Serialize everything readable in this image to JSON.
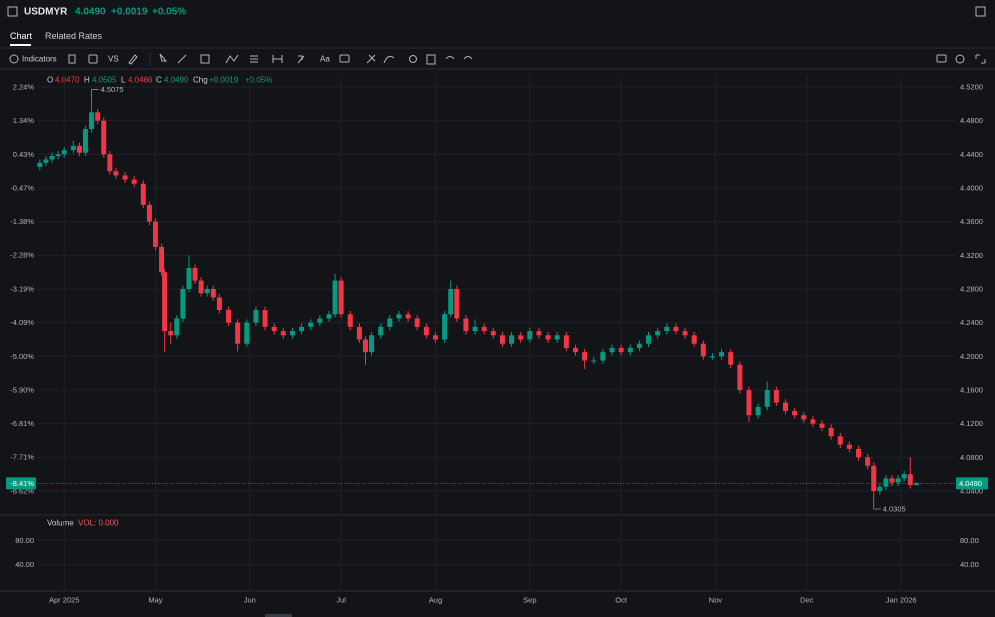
{
  "header": {
    "symbol": "USDMYR",
    "price": "4.0490",
    "change": "+0.0019",
    "change_pct": "+0.05%"
  },
  "tabs": [
    "Chart",
    "Related Rates"
  ],
  "toolbar": {
    "indicators": "Indicators",
    "compare": "VS",
    "text": "Aa"
  },
  "legend": {
    "o": "O",
    "o_value": "4.0470",
    "h": "H",
    "h_value": "4.0505",
    "l": "L",
    "l_value": "4.0466",
    "c": "C",
    "c_value": "4.0490",
    "chg": "Chg",
    "chg_value": "+0.0019",
    "chg_pct": "+0.05%"
  },
  "volume": {
    "title": "Volume",
    "label": "VOL: 0.000",
    "ylim": [
      -1.6,
      116.8
    ],
    "yticks": [
      {
        "value": 80,
        "label": "80.00"
      },
      {
        "value": 40,
        "label": "40.00"
      }
    ]
  },
  "chart_data": {
    "type": "candlestick",
    "up_color": "#089981",
    "down_color": "#f23645",
    "grid": true,
    "xlim": [
      22.4,
      323.7
    ],
    "xticks": [
      {
        "value": 31,
        "label": "Apr 2025"
      },
      {
        "value": 61,
        "label": "May"
      },
      {
        "value": 92,
        "label": "Jun"
      },
      {
        "value": 122,
        "label": "Jul"
      },
      {
        "value": 153,
        "label": "Aug"
      },
      {
        "value": 184,
        "label": "Sep"
      },
      {
        "value": 214,
        "label": "Oct"
      },
      {
        "value": 245,
        "label": "Nov"
      },
      {
        "value": 275,
        "label": "Dec"
      },
      {
        "value": 306,
        "label": "Jan 2026"
      }
    ],
    "ylim": [
      4.0174,
      4.5343
    ],
    "yticks": [
      {
        "value": 4.52,
        "label": "4.5200"
      },
      {
        "value": 4.48,
        "label": "4.4800"
      },
      {
        "value": 4.44,
        "label": "4.4400"
      },
      {
        "value": 4.4,
        "label": "4.4000"
      },
      {
        "value": 4.36,
        "label": "4.3600"
      },
      {
        "value": 4.32,
        "label": "4.3200"
      },
      {
        "value": 4.28,
        "label": "4.2800"
      },
      {
        "value": 4.24,
        "label": "4.2400"
      },
      {
        "value": 4.2,
        "label": "4.2000"
      },
      {
        "value": 4.16,
        "label": "4.1600"
      },
      {
        "value": 4.12,
        "label": "4.1200"
      },
      {
        "value": 4.08,
        "label": "4.0800"
      },
      {
        "value": 4.04,
        "label": "4.0400"
      }
    ],
    "y2lim": [
      -9.131,
      2.563
    ],
    "y2ticks": [
      {
        "value": 2.24,
        "label": "2.24%"
      },
      {
        "value": 1.34,
        "label": "1.34%"
      },
      {
        "value": 0.43,
        "label": "0.43%"
      },
      {
        "value": -0.47,
        "label": "-0.47%"
      },
      {
        "value": -1.38,
        "label": "-1.38%"
      },
      {
        "value": -2.28,
        "label": "-2.28%"
      },
      {
        "value": -3.19,
        "label": "-3.19%"
      },
      {
        "value": -4.09,
        "label": "-4.09%"
      },
      {
        "value": -5.0,
        "label": "-5.00%"
      },
      {
        "value": -5.9,
        "label": "-5.90%"
      },
      {
        "value": -6.81,
        "label": "-6.81%"
      },
      {
        "value": -7.71,
        "label": "-7.71%"
      },
      {
        "value": -8.62,
        "label": "-8.62%"
      }
    ],
    "last_price": {
      "value": 4.049,
      "label": "4.0490",
      "change_label": "-8.41%"
    },
    "annotations": [
      {
        "x": 40,
        "y": 4.5075,
        "label": "4.5075"
      },
      {
        "x": 297,
        "y": 4.0305,
        "label": "4.0305"
      }
    ],
    "x": [
      23,
      25,
      27,
      29,
      31,
      34,
      36,
      38,
      40,
      42,
      44,
      46,
      48,
      51,
      54,
      57,
      59,
      61,
      63,
      64,
      66,
      68,
      70,
      72,
      74,
      76,
      78,
      80,
      82,
      85,
      88,
      91,
      94,
      97,
      100,
      103,
      106,
      109,
      112,
      115,
      118,
      120,
      122,
      125,
      128,
      130,
      132,
      135,
      138,
      141,
      144,
      147,
      150,
      153,
      156,
      158,
      160,
      163,
      166,
      169,
      172,
      175,
      178,
      181,
      184,
      187,
      190,
      193,
      196,
      199,
      202,
      205,
      208,
      211,
      214,
      217,
      220,
      223,
      226,
      229,
      232,
      235,
      238,
      241,
      244,
      247,
      250,
      253,
      256,
      259,
      262,
      265,
      268,
      271,
      274,
      277,
      280,
      283,
      286,
      289,
      292,
      295,
      297,
      299,
      301,
      303,
      305,
      307,
      309,
      311
    ],
    "ohlc": [
      [
        4.425,
        4.434,
        4.421,
        4.43
      ],
      [
        4.43,
        4.438,
        4.426,
        4.434
      ],
      [
        4.434,
        4.442,
        4.43,
        4.438
      ],
      [
        4.438,
        4.444,
        4.434,
        4.44
      ],
      [
        4.44,
        4.449,
        4.436,
        4.445
      ],
      [
        4.445,
        4.456,
        4.441,
        4.45
      ],
      [
        4.45,
        4.454,
        4.438,
        4.442
      ],
      [
        4.442,
        4.474,
        4.438,
        4.47
      ],
      [
        4.47,
        4.5075,
        4.466,
        4.49
      ],
      [
        4.49,
        4.494,
        4.476,
        4.48
      ],
      [
        4.48,
        4.484,
        4.436,
        4.44
      ],
      [
        4.44,
        4.444,
        4.416,
        4.42
      ],
      [
        4.42,
        4.424,
        4.411,
        4.415
      ],
      [
        4.415,
        4.419,
        4.406,
        4.41
      ],
      [
        4.41,
        4.414,
        4.401,
        4.405
      ],
      [
        4.405,
        4.409,
        4.376,
        4.38
      ],
      [
        4.38,
        4.384,
        4.356,
        4.36
      ],
      [
        4.36,
        4.364,
        4.326,
        4.33
      ],
      [
        4.33,
        4.334,
        4.296,
        4.3
      ],
      [
        4.3,
        4.304,
        4.205,
        4.23
      ],
      [
        4.23,
        4.24,
        4.215,
        4.225
      ],
      [
        4.225,
        4.249,
        4.221,
        4.245
      ],
      [
        4.245,
        4.284,
        4.241,
        4.28
      ],
      [
        4.28,
        4.32,
        4.276,
        4.305
      ],
      [
        4.305,
        4.309,
        4.286,
        4.29
      ],
      [
        4.29,
        4.294,
        4.271,
        4.275
      ],
      [
        4.275,
        4.284,
        4.271,
        4.28
      ],
      [
        4.28,
        4.284,
        4.266,
        4.27
      ],
      [
        4.27,
        4.274,
        4.251,
        4.255
      ],
      [
        4.255,
        4.259,
        4.236,
        4.24
      ],
      [
        4.24,
        4.244,
        4.206,
        4.215
      ],
      [
        4.215,
        4.244,
        4.211,
        4.24
      ],
      [
        4.24,
        4.259,
        4.236,
        4.255
      ],
      [
        4.255,
        4.259,
        4.231,
        4.235
      ],
      [
        4.235,
        4.239,
        4.226,
        4.23
      ],
      [
        4.23,
        4.234,
        4.221,
        4.225
      ],
      [
        4.225,
        4.234,
        4.221,
        4.23
      ],
      [
        4.23,
        4.239,
        4.226,
        4.235
      ],
      [
        4.235,
        4.244,
        4.231,
        4.24
      ],
      [
        4.24,
        4.249,
        4.236,
        4.245
      ],
      [
        4.245,
        4.254,
        4.241,
        4.25
      ],
      [
        4.25,
        4.298,
        4.246,
        4.29
      ],
      [
        4.29,
        4.294,
        4.246,
        4.25
      ],
      [
        4.25,
        4.254,
        4.231,
        4.235
      ],
      [
        4.235,
        4.239,
        4.216,
        4.22
      ],
      [
        4.22,
        4.224,
        4.19,
        4.205
      ],
      [
        4.205,
        4.229,
        4.201,
        4.225
      ],
      [
        4.225,
        4.239,
        4.221,
        4.235
      ],
      [
        4.235,
        4.249,
        4.231,
        4.245
      ],
      [
        4.245,
        4.254,
        4.241,
        4.25
      ],
      [
        4.25,
        4.254,
        4.241,
        4.245
      ],
      [
        4.245,
        4.249,
        4.231,
        4.235
      ],
      [
        4.235,
        4.239,
        4.221,
        4.225
      ],
      [
        4.225,
        4.229,
        4.216,
        4.22
      ],
      [
        4.22,
        4.254,
        4.216,
        4.25
      ],
      [
        4.25,
        4.29,
        4.246,
        4.28
      ],
      [
        4.28,
        4.284,
        4.241,
        4.245
      ],
      [
        4.245,
        4.249,
        4.226,
        4.23
      ],
      [
        4.23,
        4.244,
        4.226,
        4.235
      ],
      [
        4.235,
        4.239,
        4.226,
        4.23
      ],
      [
        4.23,
        4.234,
        4.221,
        4.225
      ],
      [
        4.225,
        4.229,
        4.211,
        4.215
      ],
      [
        4.215,
        4.229,
        4.211,
        4.225
      ],
      [
        4.225,
        4.229,
        4.216,
        4.22
      ],
      [
        4.22,
        4.234,
        4.216,
        4.23
      ],
      [
        4.23,
        4.234,
        4.221,
        4.225
      ],
      [
        4.225,
        4.229,
        4.216,
        4.22
      ],
      [
        4.22,
        4.229,
        4.216,
        4.225
      ],
      [
        4.225,
        4.229,
        4.206,
        4.21
      ],
      [
        4.21,
        4.214,
        4.201,
        4.205
      ],
      [
        4.205,
        4.209,
        4.185,
        4.195
      ],
      [
        4.195,
        4.199,
        4.191,
        4.195
      ],
      [
        4.195,
        4.209,
        4.191,
        4.205
      ],
      [
        4.205,
        4.214,
        4.201,
        4.21
      ],
      [
        4.21,
        4.214,
        4.201,
        4.205
      ],
      [
        4.205,
        4.214,
        4.201,
        4.21
      ],
      [
        4.21,
        4.219,
        4.206,
        4.215
      ],
      [
        4.215,
        4.229,
        4.211,
        4.225
      ],
      [
        4.225,
        4.234,
        4.221,
        4.23
      ],
      [
        4.23,
        4.239,
        4.226,
        4.235
      ],
      [
        4.235,
        4.239,
        4.226,
        4.23
      ],
      [
        4.23,
        4.234,
        4.221,
        4.225
      ],
      [
        4.225,
        4.229,
        4.211,
        4.215
      ],
      [
        4.215,
        4.219,
        4.196,
        4.2
      ],
      [
        4.2,
        4.204,
        4.196,
        4.2
      ],
      [
        4.2,
        4.209,
        4.196,
        4.205
      ],
      [
        4.205,
        4.209,
        4.186,
        4.19
      ],
      [
        4.19,
        4.194,
        4.156,
        4.16
      ],
      [
        4.16,
        4.164,
        4.122,
        4.13
      ],
      [
        4.13,
        4.144,
        4.126,
        4.14
      ],
      [
        4.14,
        4.17,
        4.136,
        4.16
      ],
      [
        4.16,
        4.164,
        4.141,
        4.145
      ],
      [
        4.145,
        4.149,
        4.131,
        4.135
      ],
      [
        4.135,
        4.139,
        4.126,
        4.13
      ],
      [
        4.13,
        4.134,
        4.121,
        4.125
      ],
      [
        4.125,
        4.129,
        4.116,
        4.12
      ],
      [
        4.12,
        4.124,
        4.111,
        4.115
      ],
      [
        4.115,
        4.119,
        4.101,
        4.105
      ],
      [
        4.105,
        4.109,
        4.091,
        4.095
      ],
      [
        4.095,
        4.099,
        4.086,
        4.09
      ],
      [
        4.09,
        4.094,
        4.076,
        4.08
      ],
      [
        4.08,
        4.084,
        4.066,
        4.07
      ],
      [
        4.07,
        4.074,
        4.0305,
        4.04
      ],
      [
        4.04,
        4.049,
        4.036,
        4.045
      ],
      [
        4.045,
        4.059,
        4.041,
        4.055
      ],
      [
        4.055,
        4.059,
        4.046,
        4.05
      ],
      [
        4.05,
        4.059,
        4.046,
        4.055
      ],
      [
        4.055,
        4.064,
        4.051,
        4.06
      ],
      [
        4.06,
        4.08,
        4.043,
        4.047
      ],
      [
        4.047,
        4.0505,
        4.0466,
        4.049
      ]
    ]
  }
}
